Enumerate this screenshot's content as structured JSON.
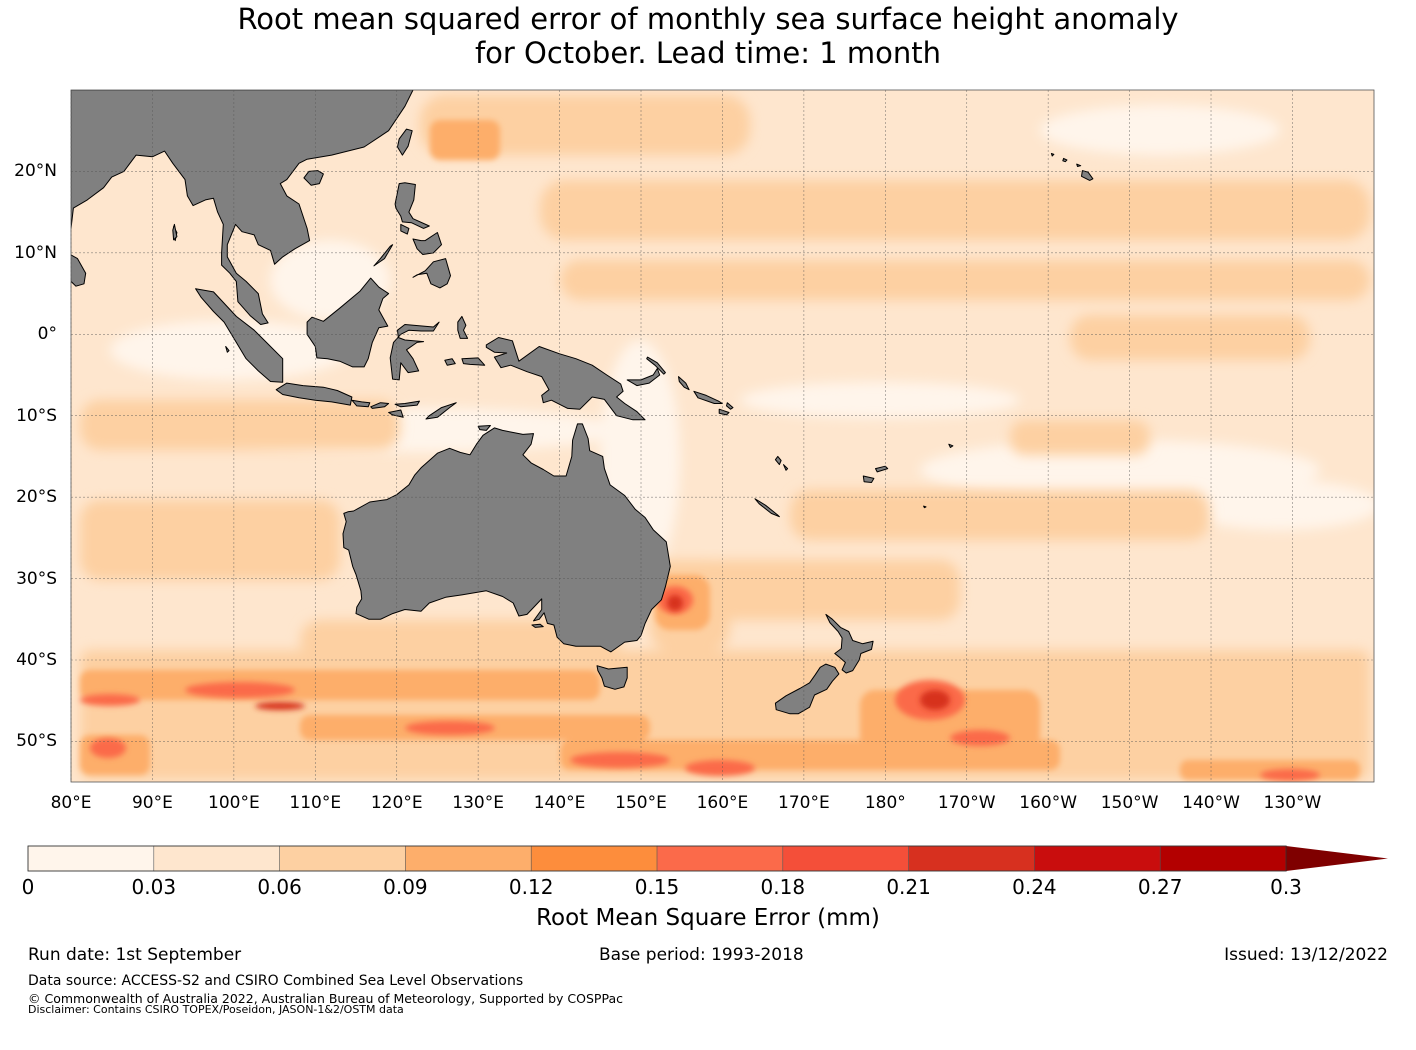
{
  "title_line1": "Root mean squared error of monthly sea surface height anomaly",
  "title_line2": "for October. Lead time: 1 month",
  "lon_labels": [
    "80°E",
    "90°E",
    "100°E",
    "110°E",
    "120°E",
    "130°E",
    "140°E",
    "150°E",
    "160°E",
    "170°E",
    "180°",
    "170°W",
    "160°W",
    "150°W",
    "140°W",
    "130°W"
  ],
  "lat_labels": [
    "20°N",
    "10°N",
    "0°",
    "10°S",
    "20°S",
    "30°S",
    "40°S",
    "50°S"
  ],
  "colorbar": {
    "label": "Root Mean Square Error (mm)",
    "ticks": [
      "0",
      "0.03",
      "0.06",
      "0.09",
      "0.12",
      "0.15",
      "0.18",
      "0.21",
      "0.24",
      "0.27",
      "0.3"
    ],
    "colors": [
      "#fff5eb",
      "#fee6ce",
      "#fdd0a2",
      "#fdae6b",
      "#fd8d3c",
      "#fb6a4a",
      "#f44f39",
      "#d7301f",
      "#c90d0d",
      "#b30000",
      "#7f0000"
    ],
    "extend": "max"
  },
  "footer": {
    "run_date": "Run date: 1st September",
    "base_period": "Base period: 1993-2018",
    "issued": "Issued: 13/12/2022",
    "data_source": "Data source: ACCESS-S2 and CSIRO Combined Sea Level Observations",
    "copyright": "© Commonwealth of Australia 2022, Australian Bureau of Meteorology, Supported by COSPPac",
    "disclaimer": "Disclaimer: Contains CSIRO TOPEX/Poseidon, JASON-1&2/OSTM data"
  },
  "map_colors": {
    "land": "#808080",
    "coast": "#000000",
    "grid": "#555555"
  }
}
